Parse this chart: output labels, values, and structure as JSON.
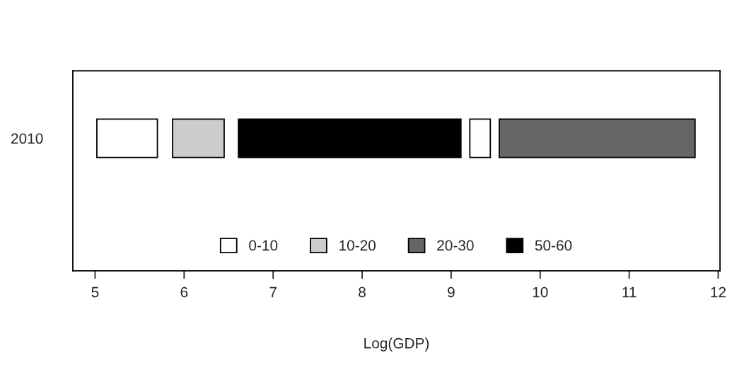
{
  "chart_data": {
    "type": "bar",
    "orientation": "horizontal",
    "categories": [
      "2010"
    ],
    "xlabel": "Log(GDP)",
    "series": [
      {
        "name": "0-10",
        "color": "#ffffff",
        "base": [
          5.02
        ],
        "values": [
          0.68
        ]
      },
      {
        "name": "10-20",
        "color": "#cccccc",
        "base": [
          5.87
        ],
        "values": [
          0.58
        ]
      },
      {
        "name": "20-30",
        "color": "#666666",
        "base": [
          9.54
        ],
        "values": [
          2.2
        ]
      },
      {
        "name": "50-60",
        "color": "#000000",
        "base": [
          6.61
        ],
        "values": [
          2.5
        ]
      },
      {
        "color": "#ffffff",
        "base": [
          9.21
        ],
        "values": [
          0.23
        ]
      }
    ],
    "xlim": [
      4.75,
      12.02
    ],
    "xticks": [
      5,
      6,
      7,
      8,
      9,
      10,
      11,
      12
    ],
    "grid": false,
    "legend": "bottom"
  }
}
